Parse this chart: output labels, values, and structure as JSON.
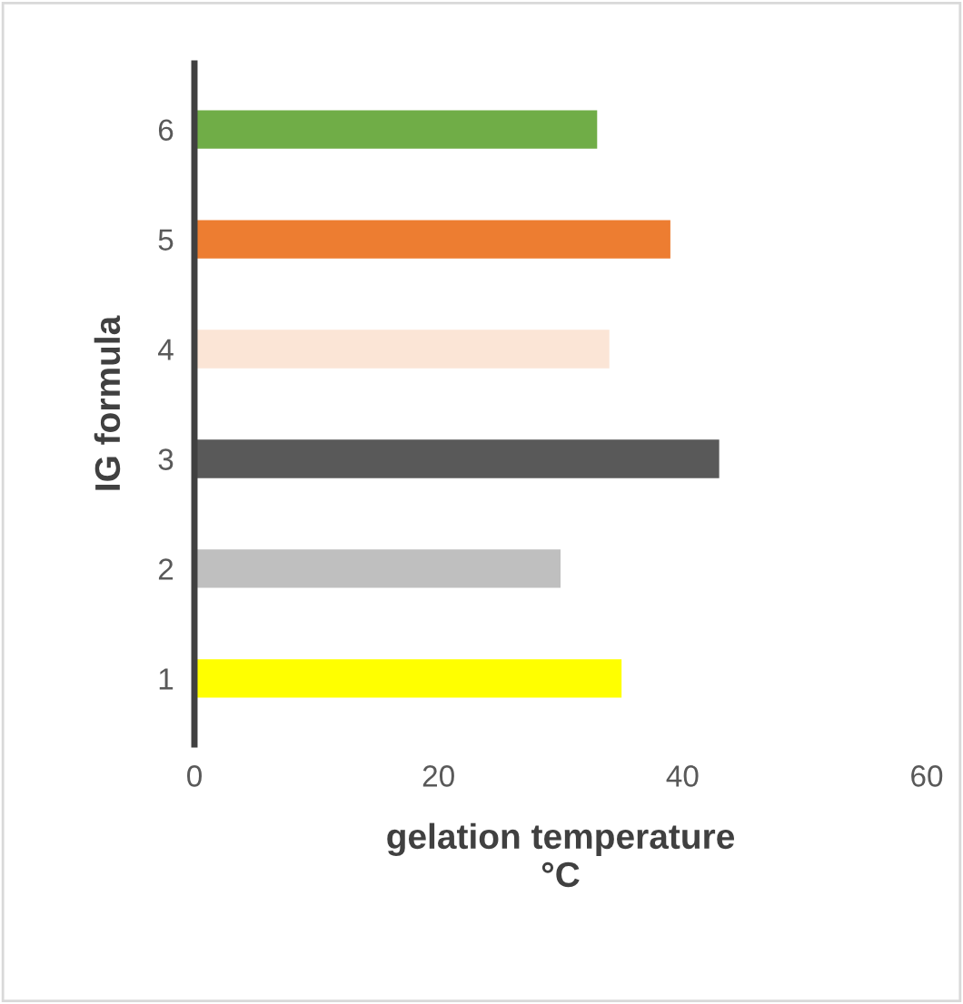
{
  "chart_data": {
    "type": "bar",
    "orientation": "horizontal",
    "categories": [
      "6",
      "5",
      "4",
      "3",
      "2",
      "1"
    ],
    "values": [
      33,
      39,
      34,
      43,
      30,
      35
    ],
    "colors": [
      "#70ad47",
      "#ed7d31",
      "#fbe5d6",
      "#595959",
      "#bfbfbf",
      "#ffff00"
    ],
    "xlim": [
      0,
      60
    ],
    "xticks": [
      0,
      20,
      40,
      60
    ],
    "xlabel": "gelation temperature\n°C",
    "ylabel": "IG formula",
    "grid": false
  }
}
